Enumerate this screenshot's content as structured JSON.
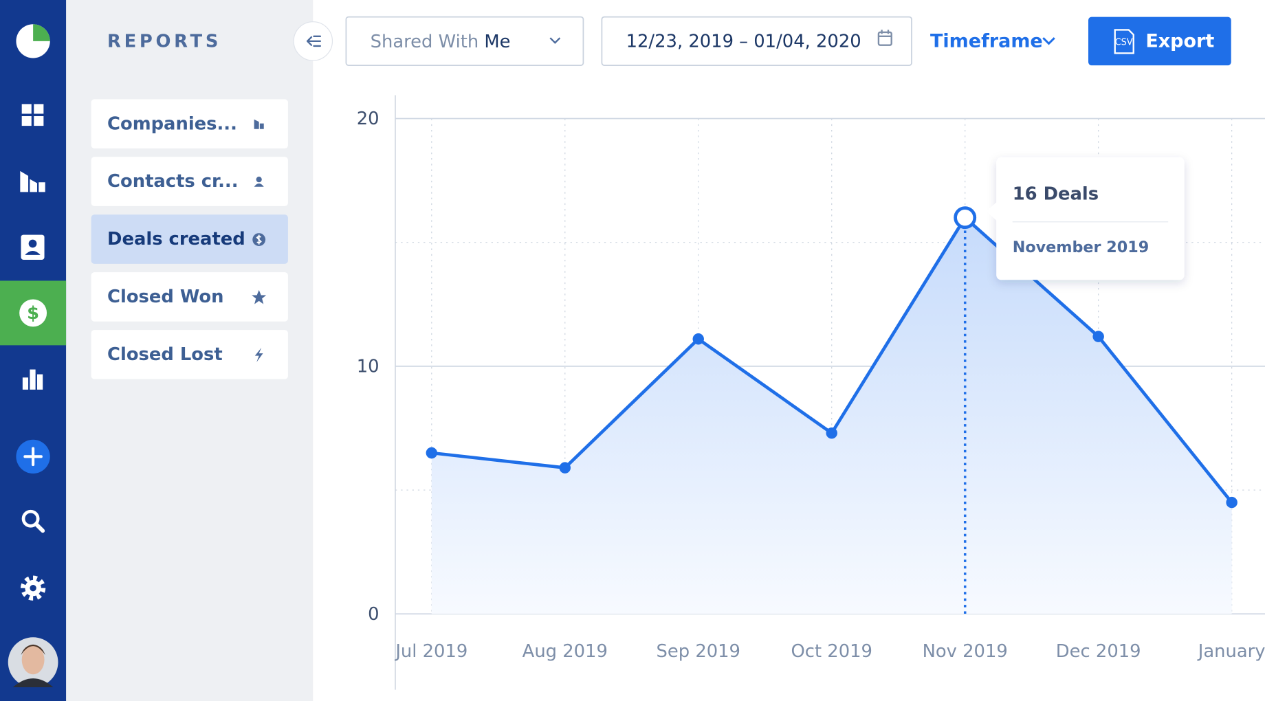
{
  "sidebar": {
    "heading": "REPORTS",
    "items": [
      "Companies...",
      "Contacts cr...",
      "Deals created",
      "Closed Won",
      "Closed Lost"
    ],
    "active": 2
  },
  "toolbar": {
    "shared_prefix": "Shared With",
    "shared_value": "Me",
    "date_range": "12/23, 2019 – 01/04, 2020",
    "timeframe": "Timeframe",
    "export": "Export",
    "csv": "CSV"
  },
  "chart_data": {
    "type": "line",
    "categories": [
      "Jul 2019",
      "Aug 2019",
      "Sep 2019",
      "Oct 2019",
      "Nov 2019",
      "Dec 2019",
      "January"
    ],
    "values": [
      6.5,
      5.9,
      11.1,
      7.3,
      16,
      11.2,
      4.5
    ],
    "color": "#1f6fe8",
    "ylim": [
      0,
      20
    ],
    "yticks": [
      0,
      10,
      20
    ],
    "minor_yticks": [
      5,
      15
    ],
    "grid": true,
    "area": true,
    "tooltip": {
      "index": 4,
      "title": "16 Deals",
      "subtitle": "November 2019"
    }
  }
}
